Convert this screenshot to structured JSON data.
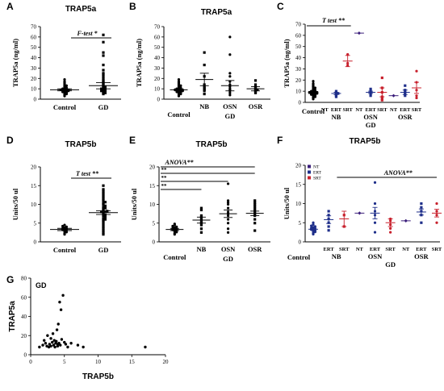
{
  "colors": {
    "navy": "#1f2f8a",
    "red": "#c8202c",
    "purple": "#3a1d7a",
    "black": "#000000"
  },
  "chart_data": [
    {
      "id": "A",
      "type": "scatter",
      "title": "TRAP5a",
      "ylabel": "TRAP5a (ng/ml)",
      "ylim": [
        0,
        70
      ],
      "yticks": [
        0,
        10,
        20,
        30,
        40,
        50,
        60,
        70
      ],
      "categories": [
        "Control",
        "GD"
      ],
      "annotation": "F-test *",
      "series": [
        {
          "category": "Control",
          "marker": "circle",
          "color": "#000000",
          "mean": 9,
          "sem": 1,
          "values": [
            3,
            4,
            5,
            5,
            6,
            6,
            7,
            7,
            7,
            8,
            8,
            8,
            8,
            9,
            9,
            9,
            9,
            9,
            10,
            10,
            10,
            11,
            11,
            12,
            13,
            13,
            14,
            15,
            16,
            17,
            19
          ]
        },
        {
          "category": "GD",
          "marker": "square",
          "color": "#000000",
          "mean": 13,
          "sem": 3,
          "values": [
            5,
            6,
            6,
            7,
            7,
            8,
            8,
            8,
            9,
            9,
            10,
            10,
            10,
            11,
            11,
            12,
            12,
            13,
            14,
            15,
            16,
            17,
            18,
            20,
            22,
            24,
            25,
            28,
            33,
            42,
            45,
            55,
            62
          ]
        }
      ]
    },
    {
      "id": "B",
      "type": "scatter",
      "title": "TRAP5a",
      "ylabel": "TRAP5a (ng/ml)",
      "ylim": [
        0,
        70
      ],
      "yticks": [
        0,
        10,
        20,
        30,
        40,
        50,
        60,
        70
      ],
      "categories": [
        "Control",
        "NB",
        "OSN",
        "OSR"
      ],
      "group_label": "GD",
      "series": [
        {
          "category": "Control",
          "marker": "circle",
          "mean": 9,
          "sem": 1,
          "values": [
            3,
            4,
            5,
            5,
            6,
            6,
            7,
            7,
            7,
            8,
            8,
            8,
            8,
            9,
            9,
            9,
            9,
            9,
            10,
            10,
            10,
            11,
            11,
            12,
            13,
            13,
            14,
            15,
            16,
            17,
            19
          ]
        },
        {
          "category": "NB",
          "marker": "square",
          "mean": 19,
          "sem": 6,
          "values": [
            5,
            8,
            9,
            10,
            11,
            12,
            14,
            22,
            33,
            45
          ]
        },
        {
          "category": "OSN",
          "marker": "circle",
          "mean": 13,
          "sem": 5,
          "values": [
            4,
            6,
            8,
            9,
            10,
            12,
            14,
            17,
            22,
            25,
            43,
            60
          ]
        },
        {
          "category": "OSR",
          "marker": "square",
          "mean": 10,
          "sem": 2,
          "values": [
            6,
            7,
            8,
            9,
            9,
            10,
            11,
            12,
            14,
            18
          ]
        }
      ]
    },
    {
      "id": "C",
      "type": "scatter",
      "ylabel": "TRAP5a (ng/ml)",
      "ylim": [
        0,
        70
      ],
      "yticks": [
        0,
        10,
        20,
        30,
        40,
        50,
        60,
        70
      ],
      "annotation": "T test **",
      "columns": [
        "Control",
        "NT",
        "ERT",
        "SRT",
        "NT",
        "ERT",
        "SRT",
        "NT",
        "ERT",
        "SRT"
      ],
      "groups": [
        "NB",
        "OSN",
        "OSR"
      ],
      "group_label": "GD",
      "series": [
        {
          "column": 0,
          "color": "#000000",
          "marker": "circle",
          "mean": 8,
          "sem": 1,
          "values": [
            3,
            4,
            5,
            5,
            6,
            6,
            7,
            7,
            7,
            8,
            8,
            8,
            8,
            9,
            9,
            9,
            9,
            9,
            10,
            10,
            10,
            11,
            11,
            12,
            13,
            13,
            14,
            15,
            16,
            17,
            19
          ]
        },
        {
          "column": 2,
          "color": "#1f2f8a",
          "marker": "square",
          "mean": 8,
          "sem": 1,
          "values": [
            5,
            6,
            7,
            8,
            8,
            9,
            10
          ]
        },
        {
          "column": 3,
          "color": "#c8202c",
          "marker": "circle",
          "mean": 37,
          "sem": 5,
          "values": [
            33,
            35,
            43
          ]
        },
        {
          "column": 4,
          "color": "#3a1d7a",
          "marker": "diamond",
          "mean": 62,
          "sem": 0,
          "values": [
            62
          ]
        },
        {
          "column": 5,
          "color": "#1f2f8a",
          "marker": "square",
          "mean": 9,
          "sem": 1,
          "values": [
            6,
            8,
            9,
            10,
            12
          ]
        },
        {
          "column": 6,
          "color": "#c8202c",
          "marker": "square",
          "mean": 9,
          "sem": 4,
          "values": [
            2,
            3,
            5,
            9,
            13,
            22
          ]
        },
        {
          "column": 7,
          "color": "#3a1d7a",
          "marker": "diamond",
          "mean": 6,
          "sem": 0,
          "values": [
            6
          ]
        },
        {
          "column": 8,
          "color": "#1f2f8a",
          "marker": "square",
          "mean": 9,
          "sem": 2,
          "values": [
            6,
            8,
            9,
            11,
            15
          ]
        },
        {
          "column": 9,
          "color": "#c8202c",
          "marker": "circle",
          "mean": 13,
          "sem": 5,
          "values": [
            4,
            6,
            11,
            18,
            28
          ]
        }
      ]
    },
    {
      "id": "D",
      "type": "scatter",
      "title": "TRAP5b",
      "ylabel": "Units/50 ul",
      "ylim": [
        0,
        20
      ],
      "yticks": [
        0,
        5,
        10,
        15,
        20
      ],
      "categories": [
        "Control",
        "GD"
      ],
      "annotation": "T test **",
      "series": [
        {
          "category": "Control",
          "marker": "circle",
          "mean": 3.3,
          "sem": 0.3,
          "values": [
            2,
            2.3,
            2.6,
            2.8,
            3,
            3.2,
            3.3,
            3.5,
            3.6,
            3.8,
            4,
            4.2,
            4.5
          ]
        },
        {
          "category": "GD",
          "marker": "square",
          "mean": 7.8,
          "sem": 0.5,
          "values": [
            2,
            2.5,
            3,
            3.5,
            4,
            4.5,
            5,
            5.5,
            5.8,
            6,
            6.3,
            6.6,
            7,
            7.2,
            7.5,
            7.8,
            8,
            8,
            8.2,
            8.5,
            8.8,
            9,
            9.3,
            9.6,
            10,
            10.3,
            10.6,
            11,
            11.5,
            12,
            12.5,
            13,
            13.5,
            14,
            15
          ]
        }
      ]
    },
    {
      "id": "E",
      "type": "scatter",
      "title": "TRAP5b",
      "ylabel": "Units/50 ul",
      "ylim": [
        0,
        20
      ],
      "yticks": [
        0,
        5,
        10,
        15,
        20
      ],
      "categories": [
        "Control",
        "NB",
        "OSN",
        "OSR"
      ],
      "group_label": "GD",
      "annotation": "ANOVA**",
      "comparisons": [
        "**",
        "**",
        "**"
      ],
      "series": [
        {
          "category": "Control",
          "marker": "circle",
          "mean": 3.3,
          "sem": 0.3,
          "values": [
            2,
            2.3,
            2.6,
            2.8,
            3,
            3.2,
            3.3,
            3.5,
            3.6,
            3.8,
            4,
            4.2,
            4.5,
            4.8
          ]
        },
        {
          "category": "NB",
          "marker": "square",
          "mean": 5.8,
          "sem": 0.8,
          "values": [
            2.5,
            3.5,
            4.5,
            5,
            5.5,
            6,
            6.5,
            7,
            8.5,
            9
          ]
        },
        {
          "category": "OSN",
          "marker": "circle",
          "mean": 7.5,
          "sem": 1,
          "values": [
            2.5,
            3.5,
            5,
            6,
            7,
            7.5,
            8,
            9,
            10,
            10.5,
            11,
            15.5
          ]
        },
        {
          "category": "OSR",
          "marker": "square",
          "mean": 7.6,
          "sem": 0.6,
          "values": [
            3,
            5,
            6,
            7,
            7.5,
            8,
            8.5,
            9,
            9.5,
            10,
            10.5,
            11
          ]
        }
      ]
    },
    {
      "id": "F",
      "type": "scatter",
      "title": "TRAP5b",
      "ylabel": "Units/50 ul",
      "ylim": [
        0,
        20
      ],
      "yticks": [
        0,
        5,
        10,
        15,
        20
      ],
      "annotation": "ANOVA**",
      "legend": [
        "NT",
        "ERT",
        "SRT"
      ],
      "columns": [
        "Control",
        "ERT",
        "SRT",
        "NT",
        "ERT",
        "SRT",
        "NT",
        "ERT",
        "SRT"
      ],
      "groups": [
        "NB",
        "OSN",
        "OSR"
      ],
      "group_label": "GD",
      "series": [
        {
          "column": 0,
          "color": "#1f2f8a",
          "marker": "circle",
          "mean": 3.3,
          "sem": 0.3,
          "values": [
            2,
            2.3,
            2.6,
            2.8,
            3,
            3.2,
            3.3,
            3.5,
            3.6,
            3.8,
            4,
            4.2,
            4.5,
            5
          ]
        },
        {
          "column": 1,
          "color": "#1f2f8a",
          "marker": "square",
          "mean": 5.8,
          "sem": 1,
          "values": [
            3,
            4,
            5,
            6,
            7,
            8
          ]
        },
        {
          "column": 2,
          "color": "#c8202c",
          "marker": "square",
          "mean": 6,
          "sem": 2,
          "values": [
            4,
            7
          ]
        },
        {
          "column": 3,
          "color": "#3a1d7a",
          "marker": "diamond",
          "mean": 7.5,
          "sem": 0,
          "values": [
            7.5
          ]
        },
        {
          "column": 4,
          "color": "#1f2f8a",
          "marker": "circle",
          "mean": 7.5,
          "sem": 1.5,
          "values": [
            2.5,
            5,
            7,
            8,
            10,
            15.5
          ]
        },
        {
          "column": 5,
          "color": "#c8202c",
          "marker": "circle",
          "mean": 5,
          "sem": 1,
          "values": [
            2.5,
            3.5,
            4.5,
            5.5,
            6
          ]
        },
        {
          "column": 6,
          "color": "#3a1d7a",
          "marker": "diamond",
          "mean": 5.5,
          "sem": 0,
          "values": [
            5.5
          ]
        },
        {
          "column": 7,
          "color": "#1f2f8a",
          "marker": "square",
          "mean": 7.8,
          "sem": 0.8,
          "values": [
            5,
            7,
            8,
            9,
            10
          ]
        },
        {
          "column": 8,
          "color": "#c8202c",
          "marker": "circle",
          "mean": 7.5,
          "sem": 1,
          "values": [
            5,
            7,
            8,
            10
          ]
        }
      ]
    },
    {
      "id": "G",
      "type": "scatter",
      "xlabel": "TRAP5b",
      "ylabel": "TRAP5a",
      "annotation": "GD",
      "xlim": [
        0,
        20
      ],
      "ylim": [
        0,
        80
      ],
      "xticks": [
        0,
        5,
        10,
        15,
        20
      ],
      "yticks": [
        0,
        20,
        40,
        60,
        80
      ],
      "x": [
        1.3,
        1.8,
        2,
        2.2,
        2.4,
        2.5,
        2.7,
        2.8,
        3,
        3,
        3.2,
        3.3,
        3.4,
        3.5,
        3.6,
        3.7,
        3.8,
        3.9,
        4,
        4,
        4.1,
        4.2,
        4.3,
        4.4,
        4.5,
        4.6,
        4.8,
        5,
        5.2,
        5.5,
        6,
        7,
        7.8,
        17
      ],
      "y": [
        8,
        10,
        15,
        12,
        9,
        20,
        8,
        11,
        17,
        9,
        13,
        22,
        10,
        15,
        8,
        12,
        14,
        26,
        9,
        11,
        32,
        12,
        55,
        10,
        47,
        16,
        62,
        13,
        11,
        8,
        12,
        10,
        8,
        8
      ]
    }
  ]
}
